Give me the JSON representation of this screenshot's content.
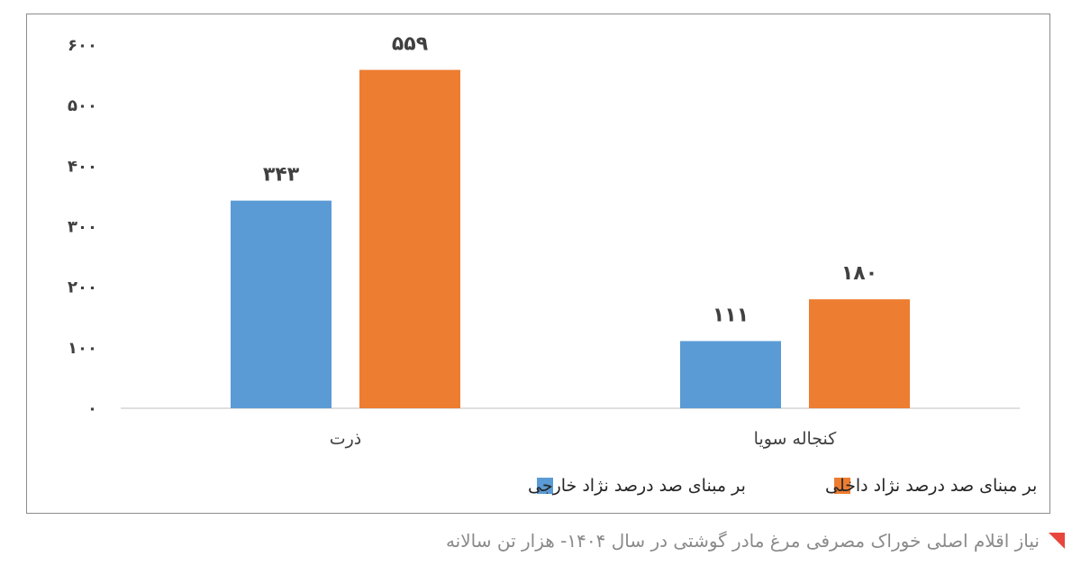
{
  "chart_data": {
    "type": "bar",
    "categories": [
      "ذرت",
      "کنجاله سویا"
    ],
    "series": [
      {
        "name": "بر مبنای صد درصد نژاد خارجی",
        "values": [
          343,
          111
        ],
        "value_labels": [
          "۳۴۳",
          "۱۱۱"
        ],
        "color": "#5b9bd5"
      },
      {
        "name": "بر مبنای صد درصد نژاد داخلی",
        "values": [
          559,
          180
        ],
        "value_labels": [
          "۵۵۹",
          "۱۸۰"
        ],
        "color": "#ed7d31"
      }
    ],
    "ylim": [
      0,
      600
    ],
    "yticks": [
      0,
      100,
      200,
      300,
      400,
      500,
      600
    ],
    "ytick_labels": [
      "۰",
      "۱۰۰",
      "۲۰۰",
      "۳۰۰",
      "۴۰۰",
      "۵۰۰",
      "۶۰۰"
    ],
    "grid": false,
    "legend": "bottom"
  },
  "caption": {
    "text": "نیاز اقلام اصلی خوراک مصرفی مرغ مادر گوشتی در سال ۱۴۰۴- هزار تن سالانه",
    "icon": "red-triangle-icon",
    "icon_color": "#e8453c",
    "text_color": "#8a8a8a"
  }
}
